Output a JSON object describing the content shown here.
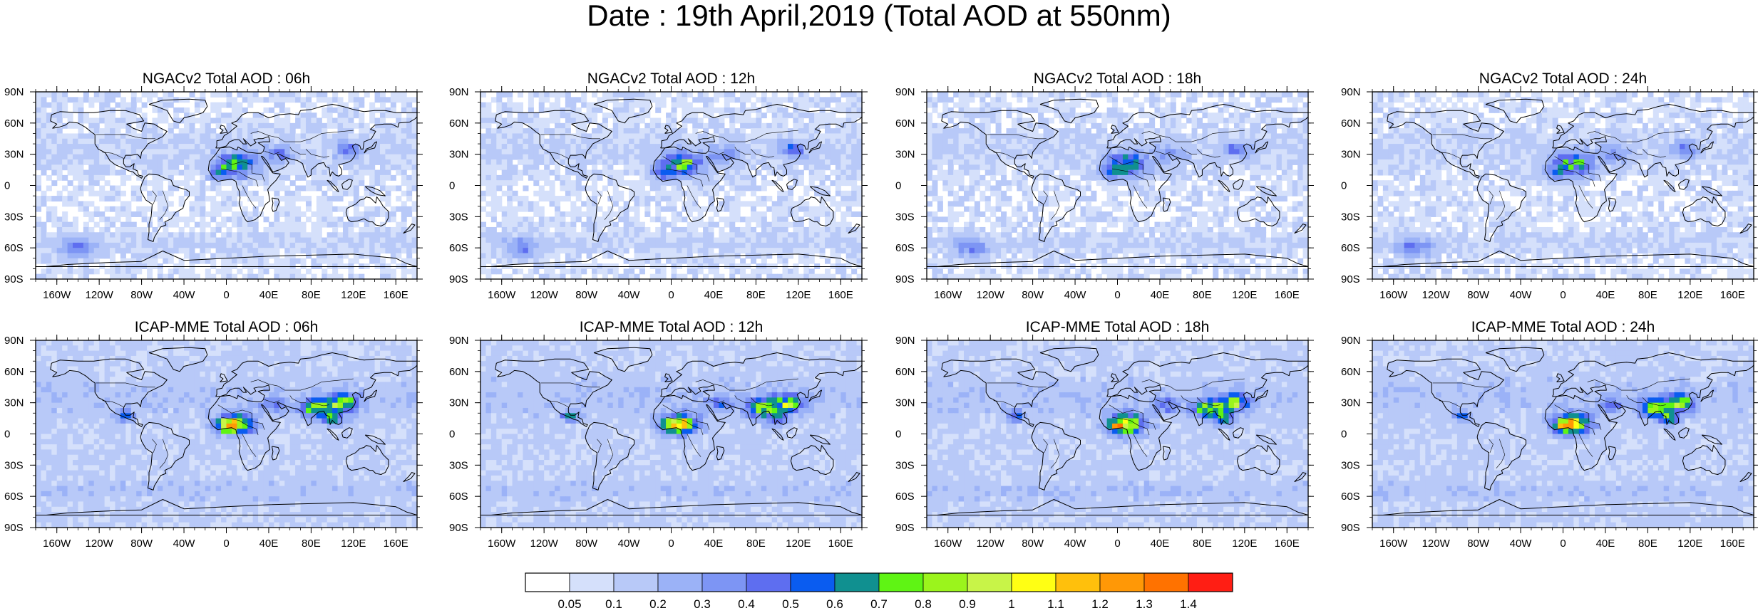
{
  "title": "Date : 19th April,2019 (Total AOD at 550nm)",
  "panels": [
    {
      "title": "NGACv2 Total AOD : 06h",
      "model": "NGACv2",
      "hour": "06h"
    },
    {
      "title": "NGACv2 Total AOD : 12h",
      "model": "NGACv2",
      "hour": "12h"
    },
    {
      "title": "NGACv2 Total AOD : 18h",
      "model": "NGACv2",
      "hour": "18h"
    },
    {
      "title": "NGACv2 Total AOD : 24h",
      "model": "NGACv2",
      "hour": "24h"
    },
    {
      "title": "ICAP-MME Total AOD : 06h",
      "model": "ICAP-MME",
      "hour": "06h"
    },
    {
      "title": "ICAP-MME Total AOD : 12h",
      "model": "ICAP-MME",
      "hour": "12h"
    },
    {
      "title": "ICAP-MME Total AOD : 18h",
      "model": "ICAP-MME",
      "hour": "18h"
    },
    {
      "title": "ICAP-MME Total AOD : 24h",
      "model": "ICAP-MME",
      "hour": "24h"
    }
  ],
  "lat_labels": [
    "90N",
    "60N",
    "30N",
    "0",
    "30S",
    "60S",
    "90S"
  ],
  "lon_labels": [
    "160W",
    "120W",
    "80W",
    "40W",
    "0",
    "40E",
    "80E",
    "120E",
    "160E"
  ],
  "colorbar": {
    "levels": [
      "0.05",
      "0.1",
      "0.2",
      "0.3",
      "0.4",
      "0.5",
      "0.6",
      "0.7",
      "0.8",
      "0.9",
      "1",
      "1.1",
      "1.2",
      "1.3",
      "1.4"
    ],
    "colors": [
      "#ffffff",
      "#d5e0fb",
      "#b8c9f8",
      "#9bb2f7",
      "#7d95f4",
      "#5e6ef0",
      "#0a5cf0",
      "#109090",
      "#5ff414",
      "#9bf41c",
      "#c8f448",
      "#ffff14",
      "#ffc00c",
      "#ff9806",
      "#ff7200",
      "#ff1e14"
    ]
  }
}
